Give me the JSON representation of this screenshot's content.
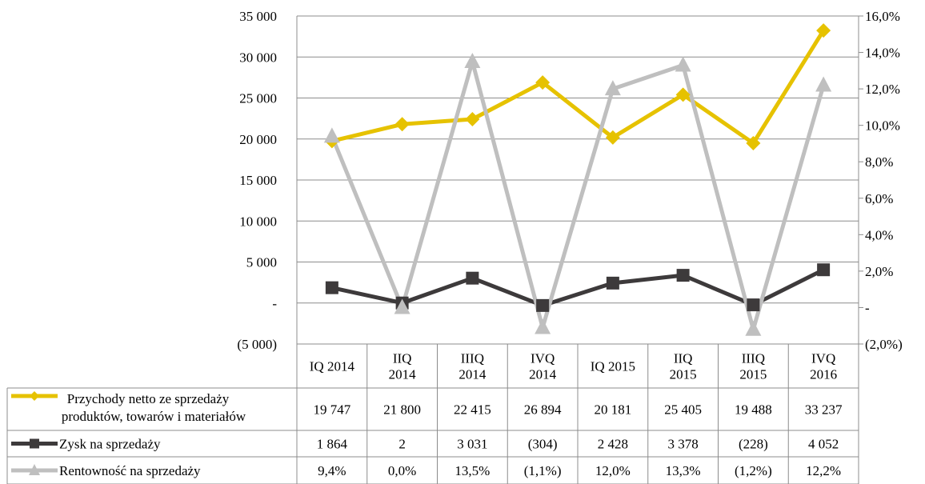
{
  "chart_data": {
    "type": "line",
    "categories": [
      [
        "IQ 2014"
      ],
      [
        "IIQ",
        "2014"
      ],
      [
        "IIIQ",
        "2014"
      ],
      [
        "IVQ",
        "2014"
      ],
      [
        "IQ 2015"
      ],
      [
        "IIQ",
        "2015"
      ],
      [
        "IIIQ",
        "2015"
      ],
      [
        "IVQ",
        "2016"
      ]
    ],
    "left_axis": {
      "min": -5000,
      "max": 35000,
      "step": 5000,
      "tick_labels": [
        "(5 000)",
        "-",
        "5 000",
        "10 000",
        "15 000",
        "20 000",
        "25 000",
        "30 000",
        "35 000"
      ]
    },
    "right_axis": {
      "min": -2.0,
      "max": 16.0,
      "step": 2.0,
      "tick_labels": [
        "(2,0%)",
        "-",
        "2,0%",
        "4,0%",
        "6,0%",
        "8,0%",
        "10,0%",
        "12,0%",
        "14,0%",
        "16,0%"
      ]
    },
    "grid": true,
    "legend": "data-table-left",
    "series": [
      {
        "name": [
          "Przychody netto ze sprzedaży",
          "produktów, towarów i materiałów"
        ],
        "axis": "left",
        "color": "#e6c200",
        "marker": "diamond",
        "values": [
          19747,
          21800,
          22415,
          26894,
          20181,
          25405,
          19488,
          33237
        ],
        "labels": [
          "19 747",
          "21 800",
          "22 415",
          "26 894",
          "20 181",
          "25 405",
          "19 488",
          "33 237"
        ]
      },
      {
        "name": [
          "Zysk na sprzedaży"
        ],
        "axis": "left",
        "color": "#3d3a3b",
        "marker": "square",
        "values": [
          1864,
          2,
          3031,
          -304,
          2428,
          3378,
          -228,
          4052
        ],
        "labels": [
          "1 864",
          "2",
          "3 031",
          "(304)",
          "2 428",
          "3 378",
          "(228)",
          "4 052"
        ]
      },
      {
        "name": [
          "Rentowność na sprzedaży"
        ],
        "axis": "right",
        "color": "#bfbfbf",
        "marker": "triangle",
        "values": [
          9.4,
          0.0,
          13.5,
          -1.1,
          12.0,
          13.3,
          -1.2,
          12.2
        ],
        "labels": [
          "9,4%",
          "0,0%",
          "13,5%",
          "(1,1%)",
          "12,0%",
          "13,3%",
          "(1,2%)",
          "12,2%"
        ]
      }
    ]
  }
}
